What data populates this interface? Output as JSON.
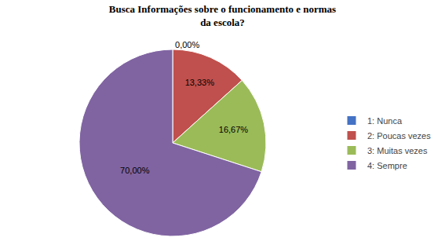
{
  "chart_data": {
    "type": "pie",
    "title": "Busca Informações sobre o funcionamento e normas\nda escola?",
    "categories": [
      "1: Nunca",
      "2: Poucas vezes",
      "3: Muitas vezes",
      "4: Sempre"
    ],
    "values": [
      0.0001,
      13.33,
      16.67,
      70.0
    ],
    "value_labels": [
      "0,00%",
      "13,33%",
      "16,67%",
      "70,00%"
    ],
    "colors": [
      "#4472C4",
      "#C0504D",
      "#9BBB59",
      "#8064A2"
    ],
    "data_labels": true,
    "legend": "right"
  }
}
